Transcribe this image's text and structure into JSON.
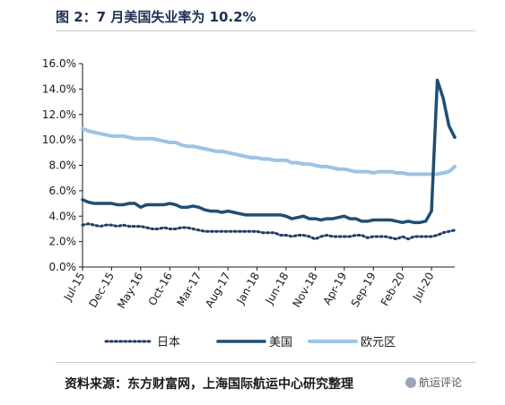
{
  "title": "图 2：7 月美国失业率为 10.2%",
  "source": "资料来源：东方财富网，上海国际航运中心研究整理",
  "watermark": "航运评论",
  "colors": {
    "japan": "#1f3e64",
    "usa": "#1f4e74",
    "euro": "#9dc3e6",
    "axis": "#1a1a1a"
  },
  "chart_data": {
    "type": "line",
    "ylim": [
      0,
      16
    ],
    "yticks": [
      "0.0%",
      "2.0%",
      "4.0%",
      "6.0%",
      "8.0%",
      "10.0%",
      "12.0%",
      "14.0%",
      "16.0%"
    ],
    "xticks": [
      "Jul-15",
      "Dec-15",
      "May-16",
      "Oct-16",
      "Mar-17",
      "Aug-17",
      "Jan-18",
      "Jun-18",
      "Nov-18",
      "Apr-19",
      "Sep-19",
      "Feb-20",
      "Jul-20"
    ],
    "x_start": "Jul-15",
    "x_end": "Jul-20",
    "legend_position": "bottom",
    "series": [
      {
        "name": "日本",
        "style": "dotted",
        "values": [
          3.3,
          3.4,
          3.3,
          3.2,
          3.3,
          3.3,
          3.2,
          3.3,
          3.2,
          3.2,
          3.2,
          3.1,
          3.0,
          3.0,
          3.1,
          3.0,
          3.0,
          3.1,
          3.1,
          3.0,
          2.9,
          2.8,
          2.8,
          2.8,
          2.8,
          2.8,
          2.8,
          2.8,
          2.8,
          2.8,
          2.8,
          2.7,
          2.7,
          2.7,
          2.5,
          2.5,
          2.4,
          2.5,
          2.5,
          2.4,
          2.2,
          2.4,
          2.5,
          2.4,
          2.4,
          2.4,
          2.4,
          2.5,
          2.5,
          2.3,
          2.4,
          2.4,
          2.4,
          2.3,
          2.2,
          2.4,
          2.2,
          2.4,
          2.4,
          2.4,
          2.4,
          2.5,
          2.7,
          2.8,
          2.9
        ]
      },
      {
        "name": "美国",
        "style": "solid",
        "values": [
          5.3,
          5.1,
          5.0,
          5.0,
          5.0,
          5.0,
          4.9,
          4.9,
          5.0,
          5.0,
          4.7,
          4.9,
          4.9,
          4.9,
          4.9,
          5.0,
          4.9,
          4.7,
          4.7,
          4.8,
          4.7,
          4.5,
          4.4,
          4.4,
          4.3,
          4.4,
          4.3,
          4.2,
          4.1,
          4.1,
          4.1,
          4.1,
          4.1,
          4.1,
          4.1,
          4.0,
          3.8,
          3.9,
          4.0,
          3.8,
          3.8,
          3.7,
          3.8,
          3.8,
          3.9,
          4.0,
          3.8,
          3.8,
          3.6,
          3.6,
          3.7,
          3.7,
          3.7,
          3.7,
          3.6,
          3.5,
          3.6,
          3.5,
          3.5,
          3.6,
          4.4,
          14.7,
          13.3,
          11.1,
          10.2
        ]
      },
      {
        "name": "欧元区",
        "style": "solid",
        "values": [
          10.9,
          10.7,
          10.6,
          10.5,
          10.4,
          10.3,
          10.3,
          10.3,
          10.2,
          10.1,
          10.1,
          10.1,
          10.1,
          10.0,
          9.9,
          9.8,
          9.8,
          9.6,
          9.5,
          9.5,
          9.4,
          9.3,
          9.2,
          9.1,
          9.1,
          9.0,
          8.9,
          8.8,
          8.7,
          8.6,
          8.6,
          8.5,
          8.5,
          8.4,
          8.4,
          8.4,
          8.2,
          8.2,
          8.1,
          8.1,
          8.0,
          7.9,
          7.9,
          7.8,
          7.7,
          7.7,
          7.6,
          7.5,
          7.5,
          7.5,
          7.4,
          7.5,
          7.5,
          7.5,
          7.4,
          7.4,
          7.3,
          7.3,
          7.3,
          7.3,
          7.3,
          7.3,
          7.4,
          7.5,
          7.9
        ]
      }
    ]
  }
}
